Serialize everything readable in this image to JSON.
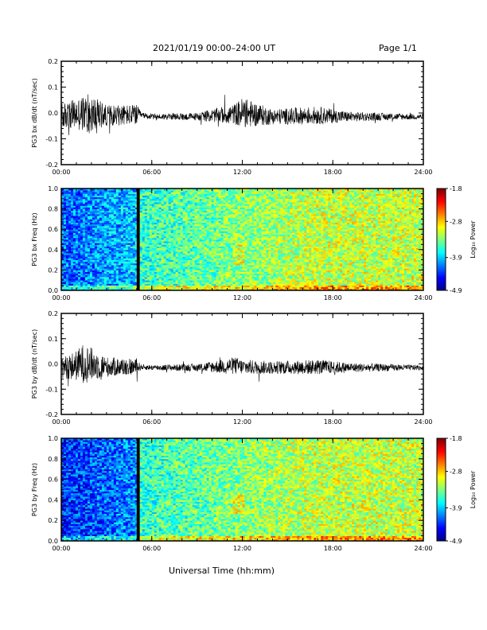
{
  "header": {
    "title": "2021/01/19  00:00–24:00 UT",
    "page": "Page 1/1"
  },
  "xlabel": "Universal Time (hh:mm)",
  "colors": {
    "axis": "#000000",
    "trace": "#000000",
    "gap": "#000000"
  },
  "chart_data": [
    {
      "type": "line",
      "ylabel": "PG3 bx dB/dt (nT/sec)",
      "ylim": [
        -0.2,
        0.2
      ],
      "yticks": [
        "0.2",
        "0.1",
        "0.0",
        "-0.1",
        "-0.2"
      ],
      "yvals": [
        0.2,
        0.1,
        0.0,
        -0.1,
        -0.2
      ],
      "xlim": [
        0,
        24
      ],
      "xticks": [
        "00:00",
        "06:00",
        "12:00",
        "18:00",
        "24:00"
      ],
      "series": [
        {
          "x": [
            0,
            1,
            1.8,
            3,
            5.2,
            6,
            9,
            11.5,
            12,
            14,
            17,
            19,
            21,
            24
          ],
          "y": [
            -0.01,
            0.03,
            0.04,
            0.01,
            0.02,
            -0.01,
            -0.01,
            0.03,
            0.05,
            -0.01,
            0.01,
            -0.01,
            -0.01,
            -0.01
          ]
        }
      ],
      "envelope": {
        "x": [
          0,
          1,
          1.8,
          3,
          5,
          5.3,
          9,
          11.5,
          12,
          14,
          17,
          19,
          21,
          24
        ],
        "amp": [
          0.05,
          0.06,
          0.08,
          0.04,
          0.04,
          0.01,
          0.015,
          0.04,
          0.06,
          0.03,
          0.035,
          0.02,
          0.015,
          0.01
        ]
      }
    },
    {
      "type": "heatmap",
      "ylabel": "PG3 bx Freq (Hz)",
      "ylim": [
        0.0,
        1.0
      ],
      "yticks": [
        "1.0",
        "0.8",
        "0.6",
        "0.4",
        "0.2",
        "0.0"
      ],
      "yvals": [
        1.0,
        0.8,
        0.6,
        0.4,
        0.2,
        0.0
      ],
      "xlim": [
        0,
        24
      ],
      "xticks": [
        "00:00",
        "06:00",
        "12:00",
        "18:00",
        "24:00"
      ],
      "colorbar": {
        "label": "Log₁₀ Power",
        "ticks": [
          "-1.8",
          "-2.8",
          "-3.9",
          "-4.9"
        ],
        "vals": [
          -1.8,
          -2.8,
          -3.9,
          -4.9
        ],
        "range": [
          -4.9,
          -1.8
        ]
      },
      "gap": [
        5.0,
        5.2
      ]
    },
    {
      "type": "line",
      "ylabel": "PG3 by dB/dt (nT/sec)",
      "ylim": [
        -0.2,
        0.2
      ],
      "yticks": [
        "0.2",
        "0.1",
        "0.0",
        "-0.1",
        "-0.2"
      ],
      "yvals": [
        0.2,
        0.1,
        0.0,
        -0.1,
        -0.2
      ],
      "xlim": [
        0,
        24
      ],
      "xticks": [
        "00:00",
        "06:00",
        "12:00",
        "18:00",
        "24:00"
      ],
      "series": [
        {
          "x": [
            0,
            1,
            1.5,
            3,
            5.2,
            6,
            9,
            11.5,
            12,
            14,
            17,
            19,
            21,
            24
          ],
          "y": [
            -0.01,
            0.02,
            0.06,
            0.0,
            0.0,
            -0.01,
            -0.01,
            0.02,
            0.0,
            -0.01,
            0.0,
            -0.01,
            -0.01,
            -0.01
          ]
        }
      ],
      "envelope": {
        "x": [
          0,
          1,
          1.5,
          3,
          5,
          5.3,
          9,
          11.5,
          12,
          14,
          17,
          19,
          21,
          24
        ],
        "amp": [
          0.04,
          0.06,
          0.08,
          0.04,
          0.03,
          0.01,
          0.015,
          0.035,
          0.03,
          0.025,
          0.03,
          0.02,
          0.015,
          0.01
        ]
      }
    },
    {
      "type": "heatmap",
      "ylabel": "PG3 by Freq (Hz)",
      "ylim": [
        0.0,
        1.0
      ],
      "yticks": [
        "1.0",
        "0.8",
        "0.6",
        "0.4",
        "0.2",
        "0.0"
      ],
      "yvals": [
        1.0,
        0.8,
        0.6,
        0.4,
        0.2,
        0.0
      ],
      "xlim": [
        0,
        24
      ],
      "xticks": [
        "00:00",
        "06:00",
        "12:00",
        "18:00",
        "24:00"
      ],
      "colorbar": {
        "label": "Log₁₀ Power",
        "ticks": [
          "-1.8",
          "-2.8",
          "-3.9",
          "-4.9"
        ],
        "vals": [
          -1.8,
          -2.8,
          -3.9,
          -4.9
        ],
        "range": [
          -4.9,
          -1.8
        ]
      },
      "gap": [
        5.0,
        5.2
      ]
    }
  ]
}
